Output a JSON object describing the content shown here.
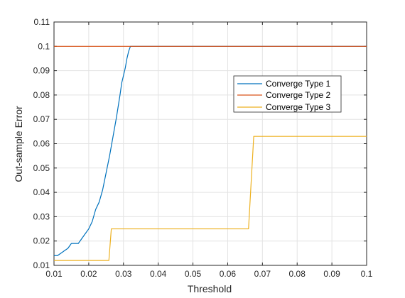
{
  "chart_data": {
    "type": "line",
    "xlabel": "Threshold",
    "ylabel": "Out-sample Error",
    "xlim": [
      0.01,
      0.1
    ],
    "ylim": [
      0.01,
      0.11
    ],
    "xticks": [
      "0.01",
      "0.02",
      "0.03",
      "0.04",
      "0.05",
      "0.06",
      "0.07",
      "0.08",
      "0.09",
      "0.1"
    ],
    "yticks": [
      "0.01",
      "0.02",
      "0.03",
      "0.04",
      "0.05",
      "0.06",
      "0.07",
      "0.08",
      "0.09",
      "0.1",
      "0.11"
    ],
    "grid": true,
    "legend_position": "right-upper",
    "series": [
      {
        "name": "Converge Type 1",
        "color": "#0072BD",
        "x": [
          0.01,
          0.011,
          0.012,
          0.013,
          0.014,
          0.015,
          0.016,
          0.017,
          0.018,
          0.019,
          0.02,
          0.021,
          0.022,
          0.023,
          0.024,
          0.025,
          0.026,
          0.027,
          0.028,
          0.029,
          0.0295,
          0.03,
          0.0305,
          0.031,
          0.0315,
          0.032,
          0.033,
          0.04,
          0.05,
          0.06,
          0.07,
          0.08,
          0.09,
          0.1
        ],
        "y": [
          0.014,
          0.014,
          0.015,
          0.016,
          0.017,
          0.019,
          0.019,
          0.019,
          0.021,
          0.023,
          0.025,
          0.028,
          0.033,
          0.036,
          0.041,
          0.048,
          0.055,
          0.063,
          0.071,
          0.08,
          0.085,
          0.088,
          0.091,
          0.095,
          0.098,
          0.1,
          0.1,
          0.1,
          0.1,
          0.1,
          0.1,
          0.1,
          0.1,
          0.1
        ]
      },
      {
        "name": "Converge Type 2",
        "color": "#D95319",
        "x": [
          0.01,
          0.1
        ],
        "y": [
          0.1,
          0.1
        ]
      },
      {
        "name": "Converge Type 3",
        "color": "#EDB120",
        "x": [
          0.01,
          0.0258,
          0.0265,
          0.066,
          0.0675,
          0.1
        ],
        "y": [
          0.012,
          0.012,
          0.025,
          0.025,
          0.063,
          0.063
        ]
      }
    ]
  }
}
